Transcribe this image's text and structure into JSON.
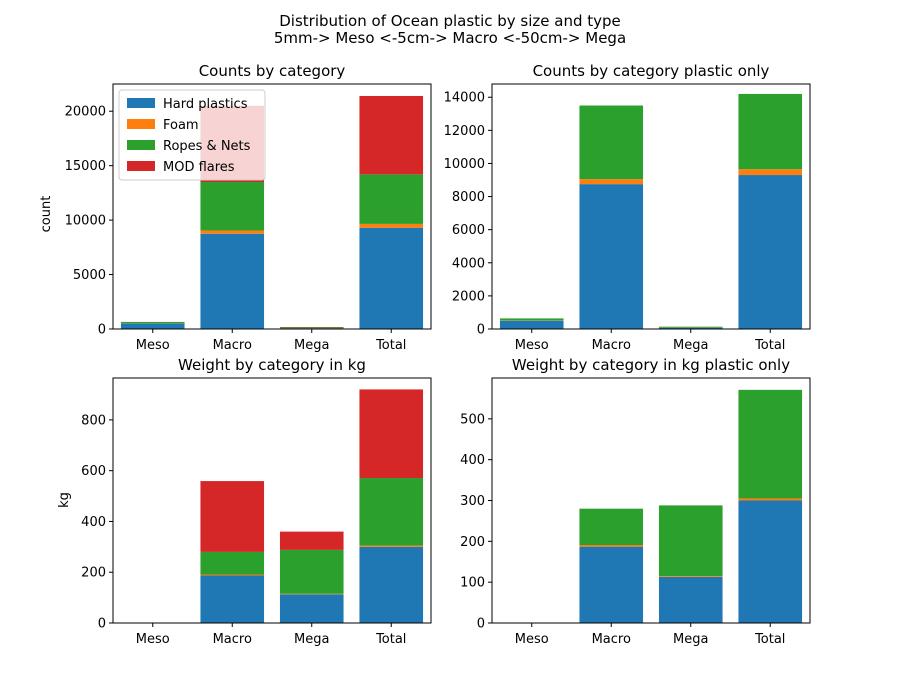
{
  "figure": {
    "suptitle_line1": "Distribution of Ocean plastic by size and type",
    "suptitle_line2": "5mm-> Meso <-5cm-> Macro <-50cm-> Mega"
  },
  "legend": {
    "placement": "upper-left of first subplot",
    "entries": [
      "Hard plastics",
      "Foam",
      "Ropes & Nets",
      "MOD flares"
    ]
  },
  "colors": {
    "Hard plastics": "#1f77b4",
    "Foam": "#ff7f0e",
    "Ropes & Nets": "#2ca02c",
    "MOD flares": "#d62728"
  },
  "chart_data": [
    {
      "type": "bar",
      "stacked": true,
      "title": "Counts by category",
      "ylabel": "count",
      "categories": [
        "Meso",
        "Macro",
        "Mega",
        "Total"
      ],
      "ylim": [
        0,
        22500
      ],
      "yticks": [
        0,
        5000,
        10000,
        15000,
        20000
      ],
      "series": [
        {
          "name": "Hard plastics",
          "values": [
            500,
            8750,
            80,
            9300
          ]
        },
        {
          "name": "Foam",
          "values": [
            20,
            300,
            10,
            350
          ]
        },
        {
          "name": "Ropes & Nets",
          "values": [
            120,
            4450,
            50,
            4550
          ]
        },
        {
          "name": "MOD flares",
          "values": [
            10,
            7000,
            40,
            7200
          ]
        }
      ]
    },
    {
      "type": "bar",
      "stacked": true,
      "title": "Counts by category plastic only",
      "ylabel": "",
      "categories": [
        "Meso",
        "Macro",
        "Mega",
        "Total"
      ],
      "ylim": [
        0,
        14800
      ],
      "yticks": [
        0,
        2000,
        4000,
        6000,
        8000,
        10000,
        12000,
        14000
      ],
      "series": [
        {
          "name": "Hard plastics",
          "values": [
            500,
            8750,
            80,
            9300
          ]
        },
        {
          "name": "Foam",
          "values": [
            20,
            300,
            10,
            350
          ]
        },
        {
          "name": "Ropes & Nets",
          "values": [
            120,
            4450,
            50,
            4550
          ]
        }
      ]
    },
    {
      "type": "bar",
      "stacked": true,
      "title": "Weight by category in kg",
      "ylabel": "kg",
      "categories": [
        "Meso",
        "Macro",
        "Mega",
        "Total"
      ],
      "ylim": [
        0,
        965
      ],
      "yticks": [
        0,
        200,
        400,
        600,
        800
      ],
      "series": [
        {
          "name": "Hard plastics",
          "values": [
            0.5,
            187,
            113,
            300
          ]
        },
        {
          "name": "Foam",
          "values": [
            0,
            4,
            2,
            5
          ]
        },
        {
          "name": "Ropes & Nets",
          "values": [
            0.2,
            89,
            173,
            266
          ]
        },
        {
          "name": "MOD flares",
          "values": [
            0,
            279,
            72,
            349
          ]
        }
      ]
    },
    {
      "type": "bar",
      "stacked": true,
      "title": "Weight by category in kg plastic only",
      "ylabel": "",
      "categories": [
        "Meso",
        "Macro",
        "Mega",
        "Total"
      ],
      "ylim": [
        0,
        600
      ],
      "yticks": [
        0,
        100,
        200,
        300,
        400,
        500
      ],
      "series": [
        {
          "name": "Hard plastics",
          "values": [
            0.5,
            187,
            113,
            300
          ]
        },
        {
          "name": "Foam",
          "values": [
            0,
            4,
            2,
            5
          ]
        },
        {
          "name": "Ropes & Nets",
          "values": [
            0.2,
            89,
            173,
            266
          ]
        }
      ]
    }
  ]
}
